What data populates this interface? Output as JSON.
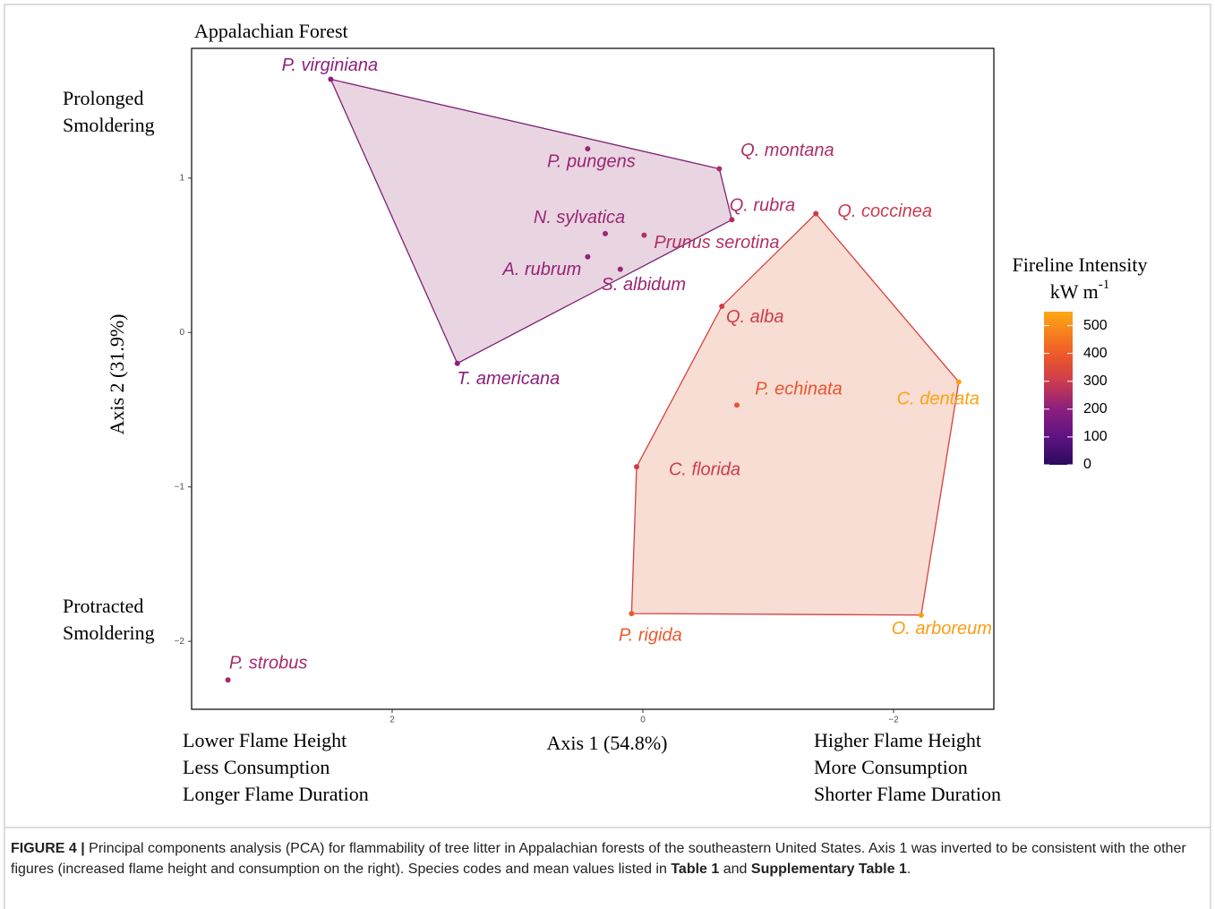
{
  "chart_data": {
    "type": "scatter",
    "title": "Appalachian Forest",
    "xlabel": "Axis 1 (54.8%)",
    "ylabel": "Axis 2 (31.9%)",
    "xlim": [
      3.6,
      -2.8
    ],
    "ylim": [
      -2.44,
      1.84
    ],
    "xticks": [
      2,
      0,
      {
        "value": -2,
        "label": "−2"
      }
    ],
    "yticks": [
      1,
      0,
      {
        "value": -1,
        "label": "−1"
      },
      {
        "value": -2,
        "label": "−2"
      }
    ],
    "annotations": {
      "top_left": [
        "Prolonged",
        "Smoldering"
      ],
      "bottom_left": [
        "Protracted",
        "Smoldering"
      ],
      "x_left": [
        "Lower Flame Height",
        "Less Consumption",
        "Longer Flame Duration"
      ],
      "x_right": [
        "Higher Flame Height",
        "More Consumption",
        "Shorter Flame Duration"
      ]
    },
    "colorbar": {
      "title": "Fireline Intensity",
      "unit": "kW m",
      "unit_exponent": "-1",
      "clim": [
        0,
        550
      ],
      "ticks": [
        0,
        100,
        200,
        300,
        400,
        500
      ],
      "colorscale": [
        [
          0,
          "#2a0a5e"
        ],
        [
          100,
          "#5e1382"
        ],
        [
          200,
          "#8b1f7e"
        ],
        [
          300,
          "#cc3c4e"
        ],
        [
          400,
          "#ef5b29"
        ],
        [
          550,
          "#fca812"
        ]
      ]
    },
    "series": [
      {
        "color": "#7d2175",
        "fill": "#e8d3e0",
        "labels": [
          "P. virginiana",
          "P. pungens",
          "Q. montana",
          "Q. rubra",
          "N. sylvatica",
          "Prunus serotina",
          "A. rubrum",
          "S. albidum",
          "T. americana"
        ],
        "x": [
          2.49,
          0.44,
          -0.61,
          -0.71,
          0.3,
          -0.01,
          0.44,
          0.18,
          1.48
        ],
        "y": [
          1.64,
          1.19,
          1.06,
          0.73,
          0.64,
          0.63,
          0.49,
          0.41,
          -0.2
        ],
        "intensity": [
          205,
          225,
          250,
          250,
          225,
          260,
          215,
          225,
          200
        ]
      },
      {
        "color": "#d6403f",
        "fill": "#f7dbd1",
        "labels": [
          "Q. coccinea",
          "Q. alba",
          "P. echinata",
          "C. dentata",
          "C. florida",
          "P. rigida",
          "O. arboreum"
        ],
        "x": [
          -1.38,
          -0.63,
          -0.75,
          -2.52,
          0.05,
          0.09,
          -2.22
        ],
        "y": [
          0.77,
          0.17,
          -0.47,
          -0.32,
          -0.87,
          -1.82,
          -1.83
        ],
        "intensity": [
          295,
          300,
          380,
          540,
          300,
          390,
          530
        ]
      },
      {
        "color": "#a8286f",
        "fill": "none",
        "labels": [
          "P. strobus"
        ],
        "x": [
          3.31
        ],
        "y": [
          -2.25
        ],
        "intensity": [
          240
        ]
      }
    ]
  },
  "caption": [
    {
      "text": "FIGURE 4 |",
      "bold": true
    },
    {
      "text": "Principal components analysis (PCA) for flammability of tree litter in Appalachian forests of the southeastern United States. Axis 1 was inverted to be consistent with the other figures (increased flame height and consumption on the right). Species codes and mean values listed in",
      "bold": false
    },
    {
      "text": "Table 1",
      "bold": true
    },
    {
      "text": "and",
      "bold": false
    },
    {
      "text": "Supplementary Table 1",
      "bold": true
    },
    {
      "text": ".",
      "bold": false
    }
  ]
}
